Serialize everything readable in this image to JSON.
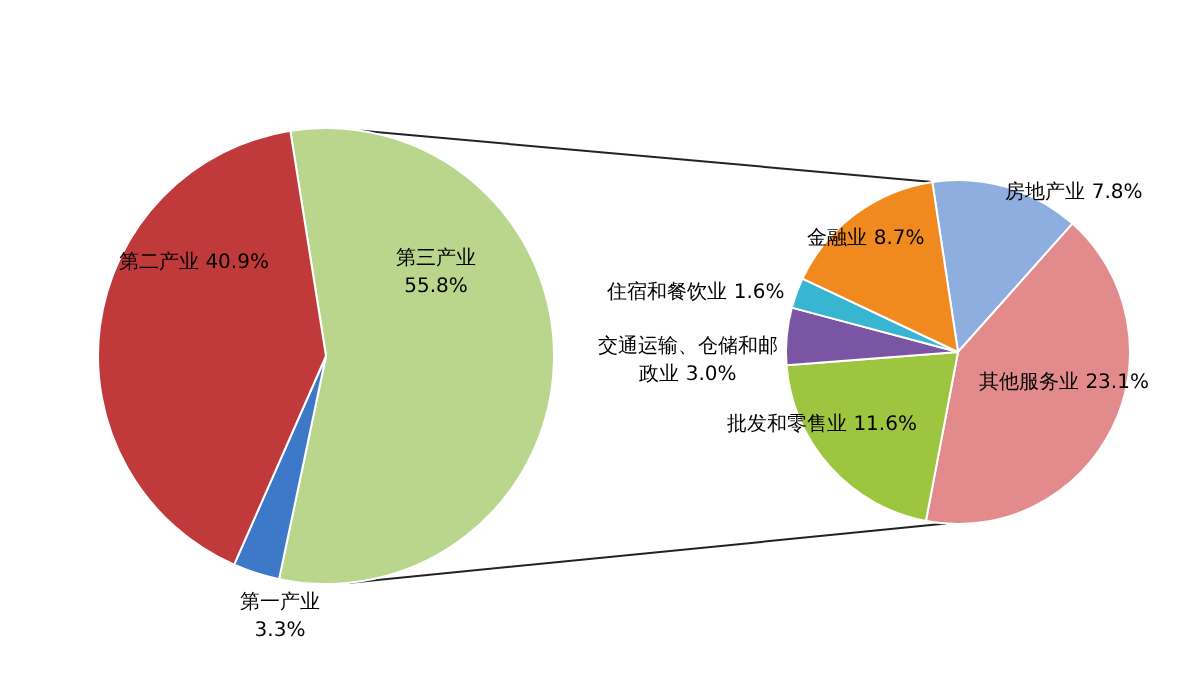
{
  "chart_data": [
    {
      "type": "pie",
      "categories": [
        "第三产业",
        "第一产业",
        "第二产业"
      ],
      "values": [
        55.8,
        3.3,
        40.9
      ],
      "value_labels": [
        "55.8%",
        "3.3%",
        "40.9%"
      ],
      "colors": [
        "#b9d68c",
        "#3d79c8",
        "#c0393b"
      ]
    },
    {
      "type": "pie",
      "categories": [
        "房地产业",
        "其他服务业",
        "批发和零售业",
        "交通运输、仓储和邮政业",
        "住宿和餐饮业",
        "金融业"
      ],
      "values": [
        7.8,
        23.1,
        11.6,
        3.0,
        1.6,
        8.7
      ],
      "value_labels": [
        "7.8%",
        "23.1%",
        "11.6%",
        "3.0%",
        "1.6%",
        "8.7%"
      ],
      "colors": [
        "#8eaee0",
        "#e28a8c",
        "#9dc540",
        "#7a55a3",
        "#38b5d0",
        "#f08a1f"
      ]
    }
  ]
}
